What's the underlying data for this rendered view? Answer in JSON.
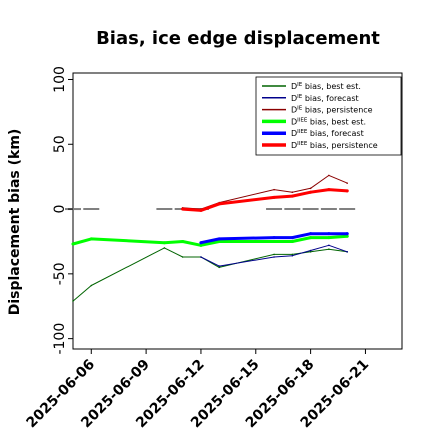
{
  "chart_data": {
    "type": "line",
    "title": "Bias, ice edge displacement",
    "xlabel": "",
    "ylabel": "Displacement bias (km)",
    "ylim": [
      -108,
      105
    ],
    "xlim": [
      "2025-06-05",
      "2025-06-23"
    ],
    "yticks": [
      100,
      50,
      0,
      -50,
      -100
    ],
    "yticklabels": [
      "100",
      "50",
      "0",
      "-50",
      "-100"
    ],
    "xticks": [
      "2025-06-06",
      "2025-06-09",
      "2025-06-12",
      "2025-06-15",
      "2025-06-18",
      "2025-06-21"
    ],
    "xticklabels": [
      "2025-06-06",
      "2025-06-09",
      "2025-06-12",
      "2025-06-15",
      "2025-06-18",
      "2025-06-21"
    ],
    "highlight_tick": "2025-06-12",
    "highlight_color": "#228B22",
    "legend_position": "top-right",
    "grid": false,
    "zero_markers": {
      "color": "#808080",
      "x": [
        "2025-06-05",
        "2025-06-06",
        "2025-06-10",
        "2025-06-11",
        "2025-06-12",
        "2025-06-16",
        "2025-06-17",
        "2025-06-18",
        "2025-06-19",
        "2025-06-20"
      ],
      "y": [
        0,
        0,
        0,
        0,
        0,
        0,
        0,
        0,
        0,
        0
      ]
    },
    "series": [
      {
        "name": "D^IE bias, best est.",
        "sup": "IE",
        "rest": "bias, best est.",
        "color": "#006400",
        "width": 1,
        "x": [
          "2025-06-05",
          "2025-06-06",
          "2025-06-10",
          "2025-06-11",
          "2025-06-12",
          "2025-06-13",
          "2025-06-16",
          "2025-06-17",
          "2025-06-18",
          "2025-06-19",
          "2025-06-20"
        ],
        "y": [
          -71,
          -59,
          -30,
          -37,
          -37,
          -45,
          -35,
          -35,
          -33,
          -31,
          -33
        ]
      },
      {
        "name": "D^IE bias, forecast",
        "sup": "IE",
        "rest": "bias, forecast",
        "color": "#00008B",
        "width": 1,
        "x": [
          "2025-06-12",
          "2025-06-13",
          "2025-06-16",
          "2025-06-17",
          "2025-06-18",
          "2025-06-19",
          "2025-06-20"
        ],
        "y": [
          -37,
          -44,
          -37,
          -36,
          -32,
          -28,
          -33
        ]
      },
      {
        "name": "D^IE bias, persistence",
        "sup": "IE",
        "rest": "bias, persistence",
        "color": "#8B0000",
        "width": 1,
        "x": [
          "2025-06-11",
          "2025-06-12",
          "2025-06-13",
          "2025-06-16",
          "2025-06-17",
          "2025-06-18",
          "2025-06-19",
          "2025-06-20"
        ],
        "y": [
          1,
          0,
          5,
          15,
          13,
          16,
          26,
          20
        ]
      },
      {
        "name": "D^IIEE bias, best est.",
        "sup": "IIEE",
        "rest": "bias, best est.",
        "color": "#00FF00",
        "width": 3,
        "x": [
          "2025-06-05",
          "2025-06-06",
          "2025-06-10",
          "2025-06-11",
          "2025-06-12",
          "2025-06-13",
          "2025-06-16",
          "2025-06-17",
          "2025-06-18",
          "2025-06-19",
          "2025-06-20"
        ],
        "y": [
          -27,
          -23,
          -26,
          -25,
          -28,
          -25,
          -25,
          -25,
          -22,
          -22,
          -21
        ]
      },
      {
        "name": "D^IIEE bias, forecast",
        "sup": "IIEE",
        "rest": "bias, forecast",
        "color": "#0000FF",
        "width": 3,
        "x": [
          "2025-06-12",
          "2025-06-13",
          "2025-06-16",
          "2025-06-17",
          "2025-06-18",
          "2025-06-19",
          "2025-06-20"
        ],
        "y": [
          -26,
          -23,
          -22,
          -22,
          -19,
          -19,
          -19
        ]
      },
      {
        "name": "D^IIEE bias, persistence",
        "sup": "IIEE",
        "rest": "bias, persistence",
        "color": "#FF0000",
        "width": 3,
        "x": [
          "2025-06-11",
          "2025-06-12",
          "2025-06-13",
          "2025-06-16",
          "2025-06-17",
          "2025-06-18",
          "2025-06-19",
          "2025-06-20"
        ],
        "y": [
          0,
          -1,
          4,
          9,
          10,
          13,
          15,
          14
        ]
      }
    ]
  }
}
